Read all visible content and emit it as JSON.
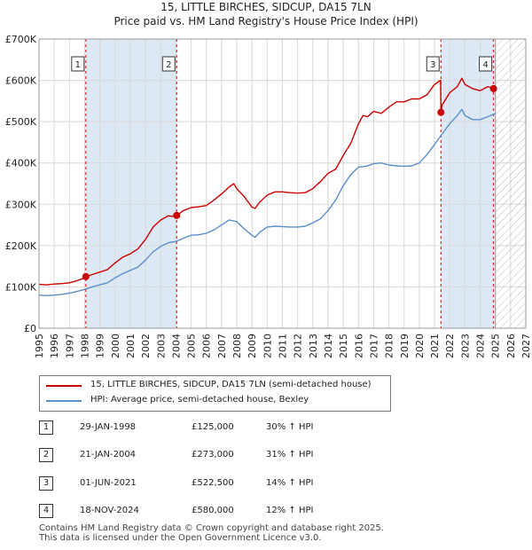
{
  "title": "15, LITTLE BIRCHES, SIDCUP, DA15 7LN",
  "subtitle": "Price paid vs. HM Land Registry's House Price Index (HPI)",
  "colors": {
    "property": "#cc0000",
    "hpi": "#5b8fc9",
    "shade": "#dde8f5",
    "marker": "#cc0000"
  },
  "chart_data": {
    "type": "line",
    "xlim": [
      1995,
      2027
    ],
    "ylim": [
      0,
      700000
    ],
    "x_ticks": [
      1995,
      1996,
      1997,
      1998,
      1999,
      2000,
      2001,
      2002,
      2003,
      2004,
      2005,
      2006,
      2007,
      2008,
      2009,
      2010,
      2011,
      2012,
      2013,
      2014,
      2015,
      2016,
      2017,
      2018,
      2019,
      2020,
      2021,
      2022,
      2023,
      2024,
      2025,
      2026,
      2027
    ],
    "y_ticks": [
      {
        "value": 0,
        "label": "£0"
      },
      {
        "value": 100000,
        "label": "£100K"
      },
      {
        "value": 200000,
        "label": "£200K"
      },
      {
        "value": 300000,
        "label": "£300K"
      },
      {
        "value": 400000,
        "label": "£400K"
      },
      {
        "value": 500000,
        "label": "£500K"
      },
      {
        "value": 600000,
        "label": "£600K"
      },
      {
        "value": 700000,
        "label": "£700K"
      }
    ],
    "data_end": 2025.0,
    "shaded_ranges": [
      [
        1998.08,
        2004.05
      ],
      [
        2021.42,
        2024.88
      ]
    ],
    "series": [
      {
        "name": "15, LITTLE BIRCHES, SIDCUP, DA15 7LN (semi-detached house)",
        "x": [
          1995.0,
          1995.5,
          1996.0,
          1996.5,
          1997.0,
          1997.5,
          1998.0,
          1998.08,
          1998.5,
          1999.0,
          1999.5,
          2000.0,
          2000.5,
          2001.0,
          2001.5,
          2002.0,
          2002.5,
          2003.0,
          2003.5,
          2004.0,
          2004.05,
          2004.5,
          2005.0,
          2005.5,
          2006.0,
          2006.5,
          2007.0,
          2007.5,
          2007.8,
          2008.0,
          2008.5,
          2009.0,
          2009.2,
          2009.5,
          2010.0,
          2010.5,
          2011.0,
          2011.5,
          2012.0,
          2012.5,
          2013.0,
          2013.5,
          2014.0,
          2014.5,
          2015.0,
          2015.5,
          2016.0,
          2016.3,
          2016.6,
          2017.0,
          2017.5,
          2018.0,
          2018.5,
          2019.0,
          2019.5,
          2020.0,
          2020.5,
          2021.0,
          2021.3,
          2021.4,
          2021.42,
          2021.5,
          2022.0,
          2022.5,
          2022.8,
          2023.0,
          2023.5,
          2024.0,
          2024.5,
          2024.88,
          2025.0
        ],
        "y": [
          106000,
          105000,
          107000,
          108000,
          110000,
          115000,
          122000,
          125000,
          130000,
          136000,
          142000,
          158000,
          172000,
          180000,
          192000,
          215000,
          245000,
          262000,
          272000,
          270000,
          273000,
          285000,
          292000,
          294000,
          297000,
          310000,
          325000,
          342000,
          350000,
          338000,
          318000,
          293000,
          290000,
          305000,
          322000,
          330000,
          330000,
          328000,
          327000,
          328000,
          338000,
          355000,
          375000,
          385000,
          418000,
          448000,
          495000,
          515000,
          512000,
          525000,
          520000,
          535000,
          548000,
          548000,
          555000,
          555000,
          565000,
          590000,
          598000,
          600000,
          522500,
          540000,
          570000,
          585000,
          605000,
          590000,
          580000,
          575000,
          585000,
          580000,
          582000
        ]
      },
      {
        "name": "HPI: Average price, semi-detached house, Bexley",
        "x": [
          1995.0,
          1995.5,
          1996.0,
          1996.5,
          1997.0,
          1997.5,
          1998.0,
          1998.5,
          1999.0,
          1999.5,
          2000.0,
          2000.5,
          2001.0,
          2001.5,
          2002.0,
          2002.5,
          2003.0,
          2003.5,
          2004.0,
          2004.5,
          2005.0,
          2005.5,
          2006.0,
          2006.5,
          2007.0,
          2007.5,
          2008.0,
          2008.5,
          2009.0,
          2009.2,
          2009.5,
          2010.0,
          2010.5,
          2011.0,
          2011.5,
          2012.0,
          2012.5,
          2013.0,
          2013.5,
          2014.0,
          2014.5,
          2015.0,
          2015.5,
          2016.0,
          2016.5,
          2017.0,
          2017.5,
          2018.0,
          2018.5,
          2019.0,
          2019.5,
          2020.0,
          2020.5,
          2021.0,
          2021.5,
          2022.0,
          2022.5,
          2022.8,
          2023.0,
          2023.5,
          2024.0,
          2024.5,
          2025.0
        ],
        "y": [
          80000,
          79000,
          80000,
          82000,
          85000,
          89000,
          94000,
          100000,
          105000,
          110000,
          122000,
          132000,
          140000,
          148000,
          165000,
          185000,
          198000,
          207000,
          210000,
          218000,
          225000,
          226000,
          230000,
          238000,
          250000,
          262000,
          258000,
          240000,
          225000,
          220000,
          232000,
          245000,
          247000,
          246000,
          245000,
          245000,
          247000,
          255000,
          265000,
          285000,
          310000,
          345000,
          372000,
          390000,
          392000,
          398000,
          400000,
          395000,
          393000,
          392000,
          393000,
          400000,
          420000,
          445000,
          470000,
          495000,
          515000,
          530000,
          515000,
          505000,
          505000,
          512000,
          520000
        ]
      }
    ],
    "sales": [
      {
        "num": "1",
        "x": 1998.08,
        "y": 125000
      },
      {
        "num": "2",
        "x": 2004.05,
        "y": 273000
      },
      {
        "num": "3",
        "x": 2021.42,
        "y": 522500
      },
      {
        "num": "4",
        "x": 2024.88,
        "y": 580000
      }
    ]
  },
  "legend": [
    {
      "label": "15, LITTLE BIRCHES, SIDCUP, DA15 7LN (semi-detached house)"
    },
    {
      "label": "HPI: Average price, semi-detached house, Bexley"
    }
  ],
  "transactions": [
    {
      "num": "1",
      "date": "29-JAN-1998",
      "price": "£125,000",
      "hpi": "30% ↑ HPI"
    },
    {
      "num": "2",
      "date": "21-JAN-2004",
      "price": "£273,000",
      "hpi": "31% ↑ HPI"
    },
    {
      "num": "3",
      "date": "01-JUN-2021",
      "price": "£522,500",
      "hpi": "14% ↑ HPI"
    },
    {
      "num": "4",
      "date": "18-NOV-2024",
      "price": "£580,000",
      "hpi": "12% ↑ HPI"
    }
  ],
  "footer": {
    "line1": "Contains HM Land Registry data © Crown copyright and database right 2025.",
    "line2": "This data is licensed under the Open Government Licence v3.0."
  }
}
